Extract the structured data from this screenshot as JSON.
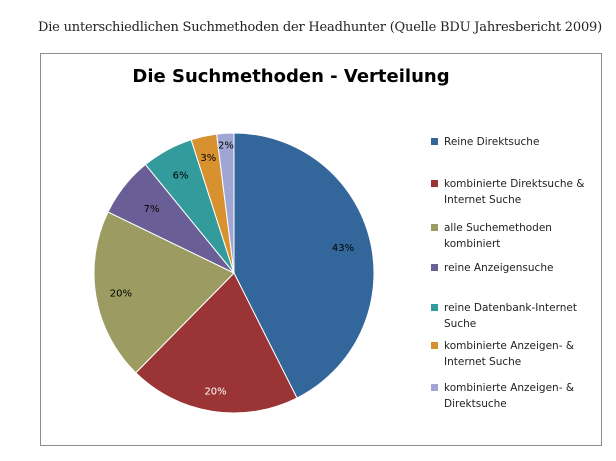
{
  "caption": "Die unterschiedlichen Suchmethoden der Headhunter  (Quelle BDU Jahresbericht 2009)",
  "chart_data": {
    "type": "pie",
    "title": "Die Suchmethoden - Verteilung",
    "categories": [
      "Reine Direktsuche",
      "kombinierte Direktsuche & Internet Suche",
      "alle Suchemethoden kombiniert",
      "reine Anzeigensuche",
      "reine Datenbank-Internet Suche",
      "kombinierte Anzeigen- & Internet Suche",
      "kombinierte Anzeigen- & Direktsuche"
    ],
    "values": [
      43,
      20,
      20,
      7,
      6,
      3,
      2
    ],
    "labels": [
      "43%",
      "20%",
      "20%",
      "7%",
      "6%",
      "3%",
      "2%"
    ],
    "colors": [
      "#33669a",
      "#9b3535",
      "#9b9b62",
      "#6a5e97",
      "#339b9b",
      "#d7922f",
      "#9fa6d4"
    ],
    "legend_position": "right"
  }
}
